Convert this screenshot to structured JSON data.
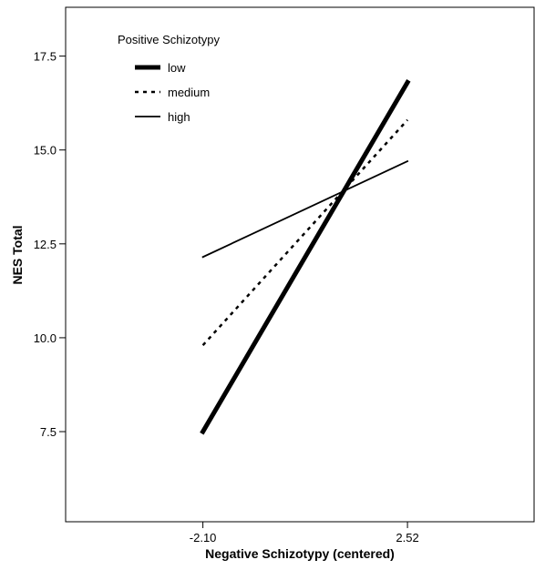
{
  "chart_data": {
    "type": "line",
    "xlabel": "Negative Schizotypy (centered)",
    "ylabel": "NES Total",
    "x_ticks": [
      "-2.10",
      "2.52"
    ],
    "y_ticks": [
      "7.5",
      "10.0",
      "12.5",
      "15.0",
      "17.5"
    ],
    "x": [
      -2.1,
      2.52
    ],
    "xlim": [
      -5.2,
      5.4
    ],
    "ylim": [
      5.1,
      18.8
    ],
    "grid": false,
    "legend": {
      "title": "Positive Schizotypy",
      "placement": "top-left"
    },
    "series": [
      {
        "name": "low",
        "values": [
          7.5,
          16.8
        ],
        "style": "solid",
        "weight": "thick",
        "color": "#000000"
      },
      {
        "name": "medium",
        "values": [
          9.8,
          15.8
        ],
        "style": "dotted",
        "weight": "normal",
        "color": "#000000"
      },
      {
        "name": "high",
        "values": [
          12.15,
          14.7
        ],
        "style": "solid",
        "weight": "thin",
        "color": "#000000"
      }
    ]
  }
}
